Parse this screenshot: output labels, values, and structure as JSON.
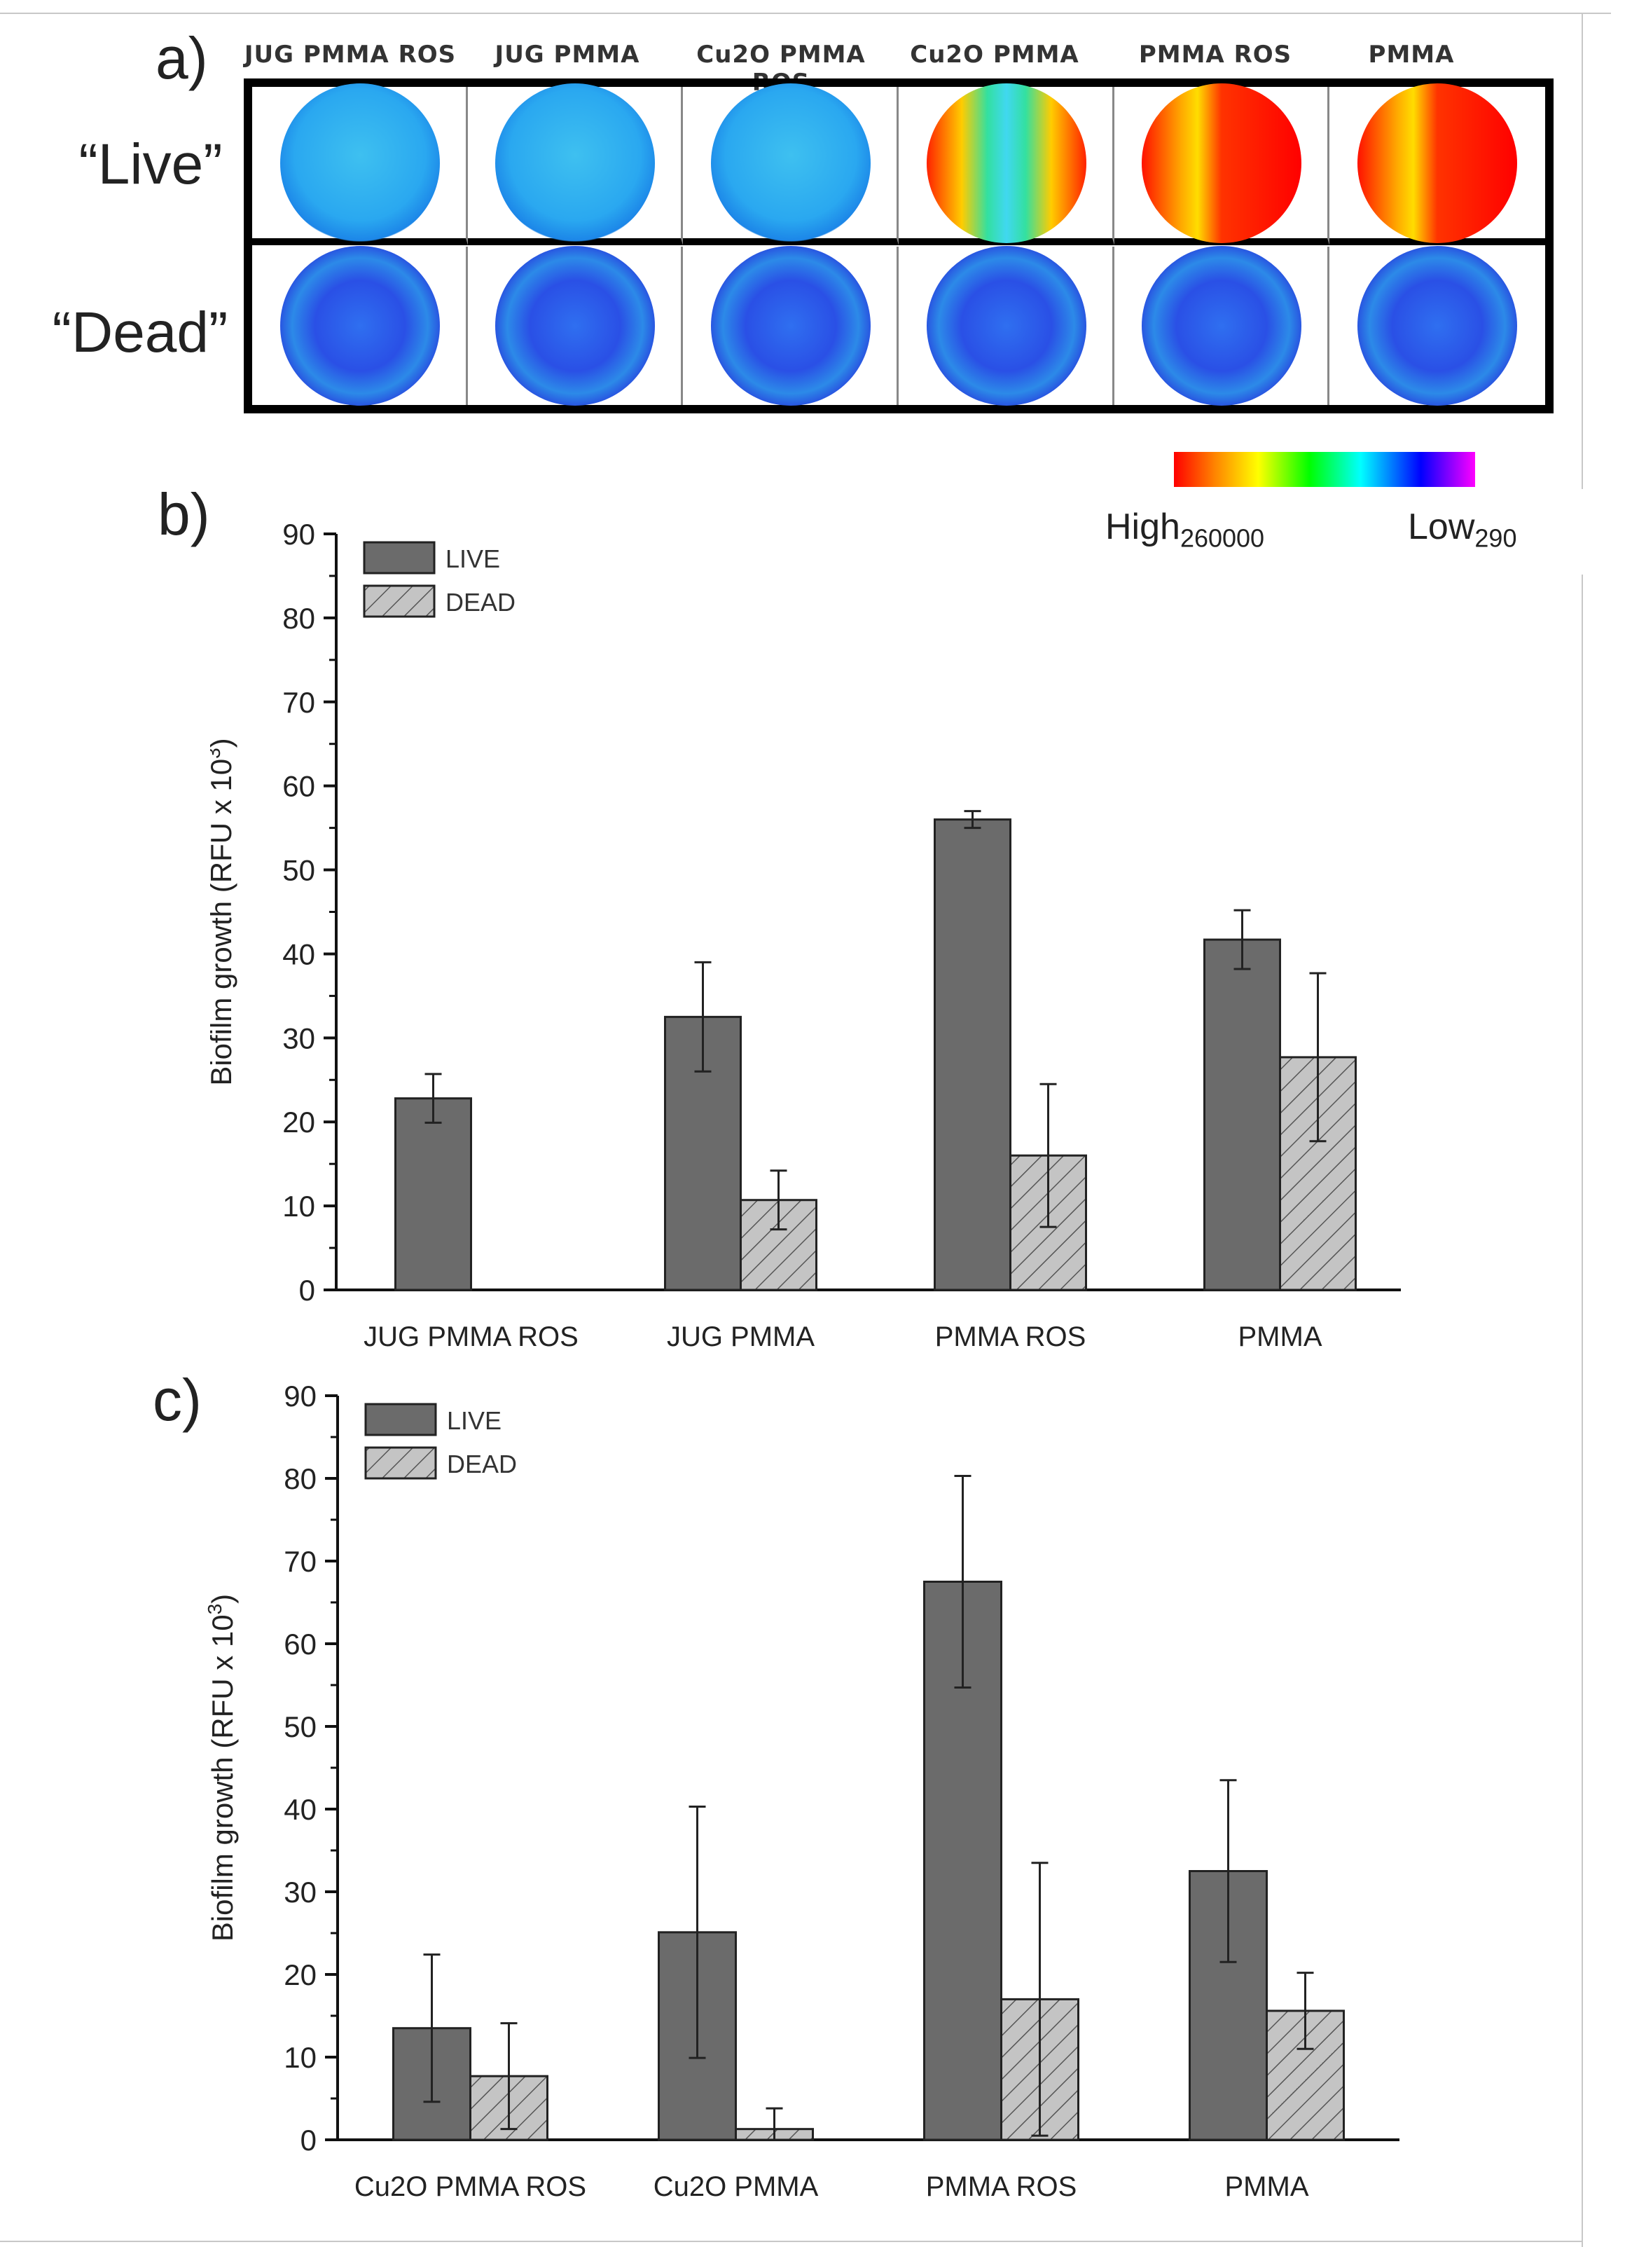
{
  "panel_a": {
    "label": "a)",
    "columns": [
      "JUG PMMA ROS",
      "JUG PMMA",
      "Cu2O PMMA ROS",
      "Cu2O PMMA",
      "PMMA ROS",
      "PMMA"
    ],
    "rows": [
      "“Live”",
      "“Dead”"
    ],
    "live_heat": [
      "low",
      "low",
      "low",
      "mixed",
      "high",
      "high"
    ],
    "dead_heat": [
      "low",
      "low",
      "low",
      "low",
      "low",
      "low"
    ],
    "colorbar": {
      "high_label": "High",
      "high_sub": "260000",
      "low_label": "Low",
      "low_sub": "290",
      "colors": [
        "#ff0000",
        "#ff8800",
        "#ffff00",
        "#00ff00",
        "#00ffff",
        "#0000ff",
        "#ff00ff"
      ]
    }
  },
  "chart_data": [
    {
      "panel_label": "b)",
      "type": "bar",
      "categories": [
        "JUG PMMA ROS",
        "JUG PMMA",
        "PMMA ROS",
        "PMMA"
      ],
      "series": [
        {
          "name": "LIVE",
          "values": [
            22.8,
            32.5,
            56.0,
            41.7
          ],
          "errors": [
            2.9,
            6.5,
            1.0,
            3.5
          ]
        },
        {
          "name": "DEAD",
          "values": [
            0,
            10.7,
            16.0,
            27.7
          ],
          "errors": [
            0,
            3.5,
            8.5,
            10.0
          ]
        }
      ],
      "ylabel": "Biofilm growth (RFU x 10",
      "ylabel_sup": "3",
      "ylabel_end": ")",
      "ylim": [
        0,
        90
      ],
      "yticks": [
        "0",
        "10",
        "20",
        "30",
        "40",
        "50",
        "60",
        "70",
        "80",
        "90"
      ],
      "legend": [
        "LIVE",
        "DEAD"
      ]
    },
    {
      "panel_label": "c)",
      "type": "bar",
      "categories": [
        "Cu2O PMMA ROS",
        "Cu2O PMMA",
        "PMMA ROS",
        "PMMA"
      ],
      "series": [
        {
          "name": "LIVE",
          "values": [
            13.5,
            25.1,
            67.5,
            32.5
          ],
          "errors": [
            8.9,
            15.2,
            12.8,
            11.0
          ]
        },
        {
          "name": "DEAD",
          "values": [
            7.7,
            1.3,
            17.0,
            15.6
          ],
          "errors": [
            6.4,
            2.5,
            16.5,
            4.6
          ]
        }
      ],
      "ylabel": "Biofilm growth (RFU x 10",
      "ylabel_sup": "3",
      "ylabel_end": ")",
      "ylim": [
        0,
        90
      ],
      "yticks": [
        "0",
        "10",
        "20",
        "30",
        "40",
        "50",
        "60",
        "70",
        "80",
        "90"
      ],
      "legend": [
        "LIVE",
        "DEAD"
      ]
    }
  ]
}
